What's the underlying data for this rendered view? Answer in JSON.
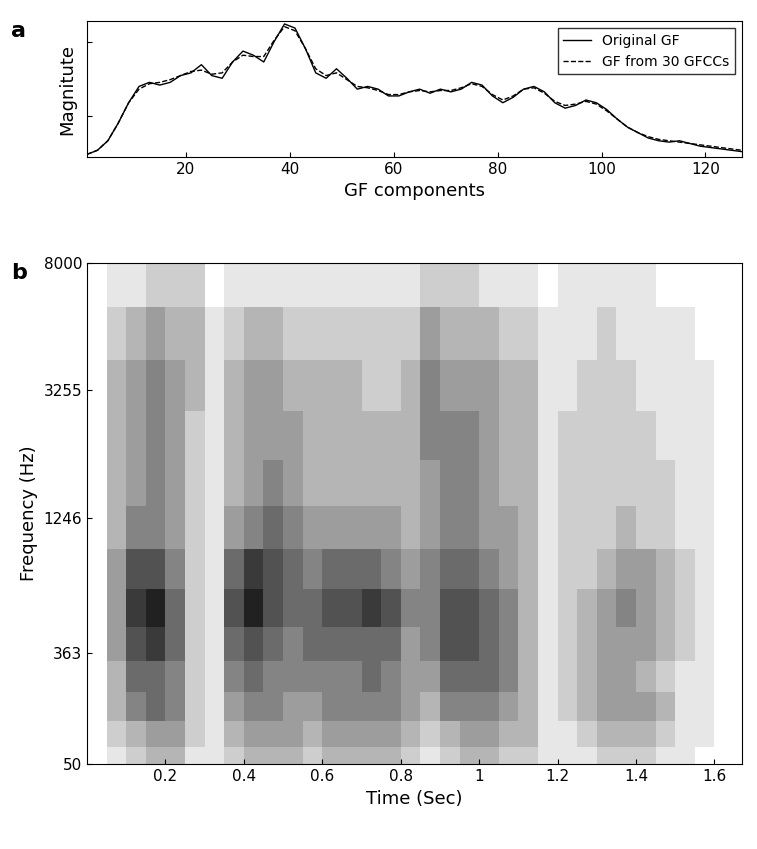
{
  "chart_data": [
    {
      "type": "line",
      "panel": "a",
      "xlabel": "GF components",
      "ylabel": "Magnitute",
      "xlim": [
        1,
        127
      ],
      "xticks": [
        20,
        40,
        60,
        80,
        100,
        120
      ],
      "ylim": [
        0,
        1
      ],
      "yticks": [
        0.3,
        0.85
      ],
      "tick_labels": "x",
      "legend": "upper right",
      "x": [
        1,
        3,
        5,
        7,
        9,
        11,
        13,
        15,
        17,
        19,
        21,
        23,
        25,
        27,
        29,
        31,
        33,
        35,
        37,
        39,
        41,
        43,
        45,
        47,
        49,
        51,
        53,
        55,
        57,
        59,
        61,
        63,
        65,
        67,
        69,
        71,
        73,
        75,
        77,
        79,
        81,
        83,
        85,
        87,
        89,
        91,
        93,
        95,
        97,
        99,
        101,
        103,
        105,
        107,
        109,
        111,
        113,
        115,
        117,
        119,
        121,
        123,
        125,
        127
      ],
      "series": [
        {
          "name": "Original GF",
          "color": "#000000",
          "line_style": "solid",
          "values": [
            0.02,
            0.05,
            0.12,
            0.25,
            0.4,
            0.52,
            0.55,
            0.53,
            0.55,
            0.6,
            0.62,
            0.68,
            0.6,
            0.58,
            0.7,
            0.78,
            0.75,
            0.7,
            0.85,
            0.98,
            0.95,
            0.8,
            0.62,
            0.58,
            0.65,
            0.58,
            0.5,
            0.52,
            0.5,
            0.45,
            0.45,
            0.48,
            0.5,
            0.47,
            0.5,
            0.48,
            0.5,
            0.55,
            0.53,
            0.45,
            0.4,
            0.44,
            0.5,
            0.52,
            0.48,
            0.4,
            0.36,
            0.38,
            0.42,
            0.4,
            0.35,
            0.28,
            0.22,
            0.18,
            0.14,
            0.12,
            0.11,
            0.12,
            0.1,
            0.08,
            0.07,
            0.06,
            0.05,
            0.04
          ]
        },
        {
          "name": "GF from 30 GFCCs",
          "color": "#000000",
          "line_style": "dashed",
          "values": [
            0.02,
            0.05,
            0.12,
            0.25,
            0.4,
            0.5,
            0.54,
            0.55,
            0.57,
            0.6,
            0.63,
            0.64,
            0.61,
            0.62,
            0.7,
            0.75,
            0.74,
            0.74,
            0.86,
            0.96,
            0.93,
            0.8,
            0.65,
            0.6,
            0.62,
            0.57,
            0.52,
            0.51,
            0.49,
            0.46,
            0.46,
            0.48,
            0.49,
            0.48,
            0.49,
            0.49,
            0.51,
            0.54,
            0.52,
            0.46,
            0.42,
            0.45,
            0.5,
            0.51,
            0.47,
            0.41,
            0.38,
            0.39,
            0.41,
            0.39,
            0.34,
            0.28,
            0.22,
            0.18,
            0.15,
            0.13,
            0.12,
            0.11,
            0.1,
            0.09,
            0.08,
            0.07,
            0.06,
            0.05
          ]
        }
      ]
    },
    {
      "type": "heatmap",
      "panel": "b",
      "xlabel": "Time (Sec)",
      "ylabel": "Frequency (Hz)",
      "xlim": [
        0,
        1.67
      ],
      "xticks": [
        0.2,
        0.4,
        0.6,
        0.8,
        1,
        1.2,
        1.4,
        1.6
      ],
      "ylim": [
        50,
        8000
      ],
      "yticks": [
        50,
        363,
        1246,
        3255,
        8000
      ],
      "x": [
        0.025,
        0.075,
        0.125,
        0.175,
        0.225,
        0.275,
        0.325,
        0.375,
        0.425,
        0.475,
        0.525,
        0.575,
        0.625,
        0.675,
        0.725,
        0.775,
        0.825,
        0.875,
        0.925,
        0.975,
        1.025,
        1.075,
        1.125,
        1.175,
        1.225,
        1.275,
        1.325,
        1.375,
        1.425,
        1.475,
        1.525,
        1.575,
        1.625
      ],
      "y": [
        60,
        110,
        180,
        270,
        390,
        560,
        800,
        1130,
        1600,
        2300,
        3300,
        4800,
        7000
      ],
      "cells": [
        [
          0,
          1,
          2,
          3,
          3,
          1,
          1,
          2,
          3,
          3,
          3,
          2,
          3,
          3,
          3,
          3,
          2,
          1,
          2,
          3,
          3,
          2,
          2,
          1,
          1,
          1,
          2,
          2,
          2,
          1,
          1,
          0,
          0
        ],
        [
          0,
          2,
          3,
          4,
          4,
          2,
          1,
          3,
          4,
          4,
          4,
          3,
          4,
          4,
          4,
          4,
          3,
          2,
          3,
          4,
          4,
          3,
          3,
          1,
          1,
          2,
          3,
          3,
          3,
          2,
          1,
          1,
          0
        ],
        [
          0,
          3,
          5,
          6,
          5,
          2,
          1,
          4,
          5,
          5,
          4,
          4,
          5,
          5,
          5,
          5,
          4,
          3,
          5,
          5,
          5,
          4,
          3,
          1,
          2,
          3,
          4,
          4,
          4,
          3,
          1,
          1,
          0
        ],
        [
          0,
          3,
          6,
          6,
          5,
          2,
          1,
          5,
          6,
          5,
          5,
          5,
          5,
          5,
          6,
          5,
          4,
          4,
          6,
          6,
          6,
          5,
          3,
          1,
          2,
          3,
          4,
          4,
          3,
          2,
          1,
          1,
          0
        ],
        [
          0,
          4,
          7,
          8,
          6,
          2,
          1,
          6,
          7,
          6,
          5,
          6,
          6,
          6,
          6,
          6,
          4,
          5,
          7,
          7,
          6,
          5,
          3,
          1,
          2,
          3,
          4,
          4,
          4,
          3,
          2,
          1,
          0
        ],
        [
          0,
          4,
          8,
          9,
          6,
          2,
          1,
          7,
          9,
          7,
          6,
          6,
          7,
          7,
          8,
          7,
          5,
          5,
          7,
          7,
          6,
          5,
          3,
          1,
          2,
          3,
          4,
          5,
          4,
          3,
          2,
          1,
          0
        ],
        [
          0,
          4,
          7,
          7,
          5,
          2,
          1,
          6,
          8,
          7,
          6,
          5,
          6,
          6,
          6,
          5,
          4,
          5,
          6,
          6,
          5,
          4,
          3,
          1,
          2,
          2,
          3,
          4,
          4,
          3,
          2,
          1,
          0
        ],
        [
          0,
          3,
          5,
          5,
          4,
          2,
          1,
          4,
          5,
          6,
          5,
          4,
          4,
          4,
          4,
          4,
          3,
          4,
          5,
          5,
          4,
          4,
          3,
          1,
          2,
          2,
          2,
          3,
          2,
          2,
          1,
          1,
          0
        ],
        [
          0,
          3,
          4,
          5,
          4,
          2,
          1,
          3,
          4,
          5,
          4,
          3,
          3,
          3,
          3,
          3,
          3,
          4,
          5,
          5,
          4,
          3,
          3,
          1,
          2,
          2,
          2,
          2,
          2,
          2,
          1,
          1,
          0
        ],
        [
          0,
          3,
          4,
          5,
          4,
          2,
          1,
          3,
          4,
          4,
          4,
          3,
          3,
          3,
          3,
          3,
          3,
          5,
          5,
          5,
          4,
          3,
          3,
          1,
          2,
          2,
          2,
          2,
          2,
          1,
          1,
          1,
          0
        ],
        [
          0,
          3,
          4,
          5,
          4,
          3,
          1,
          3,
          4,
          4,
          3,
          3,
          3,
          3,
          2,
          2,
          3,
          5,
          4,
          4,
          4,
          3,
          3,
          1,
          1,
          2,
          2,
          2,
          1,
          1,
          1,
          1,
          0
        ],
        [
          0,
          2,
          3,
          4,
          3,
          3,
          1,
          2,
          3,
          3,
          2,
          2,
          2,
          2,
          2,
          2,
          2,
          4,
          3,
          3,
          3,
          2,
          2,
          1,
          1,
          1,
          2,
          1,
          1,
          1,
          1,
          0,
          0
        ],
        [
          0,
          1,
          1,
          2,
          2,
          2,
          0,
          1,
          1,
          1,
          1,
          1,
          1,
          1,
          1,
          1,
          1,
          2,
          2,
          2,
          1,
          1,
          1,
          0,
          1,
          1,
          1,
          1,
          1,
          0,
          0,
          0,
          0
        ]
      ]
    }
  ]
}
